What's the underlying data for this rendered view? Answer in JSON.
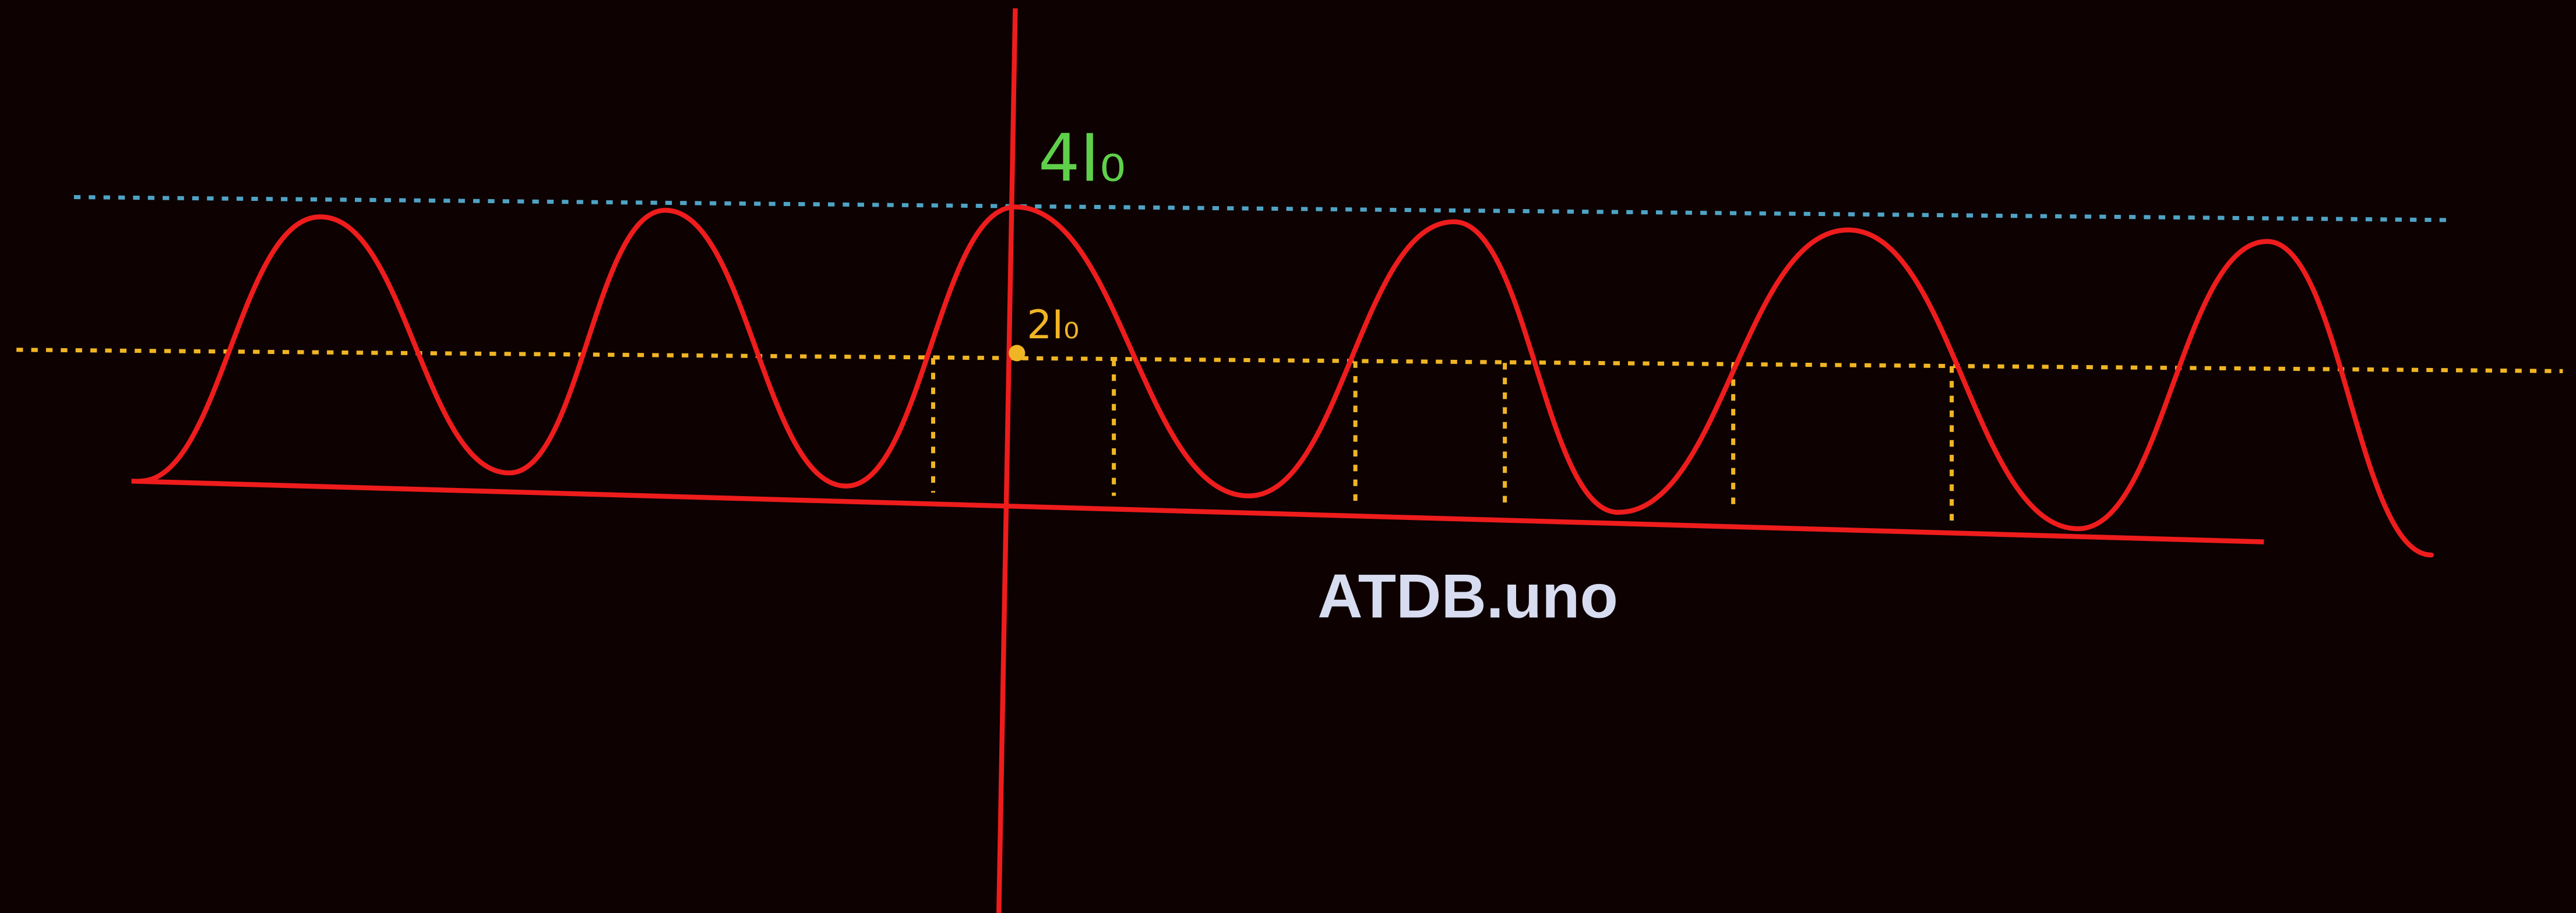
{
  "labels": {
    "max_intensity": "4I₀",
    "mid_intensity": "2I₀",
    "watermark": "ATDB.uno"
  }
}
